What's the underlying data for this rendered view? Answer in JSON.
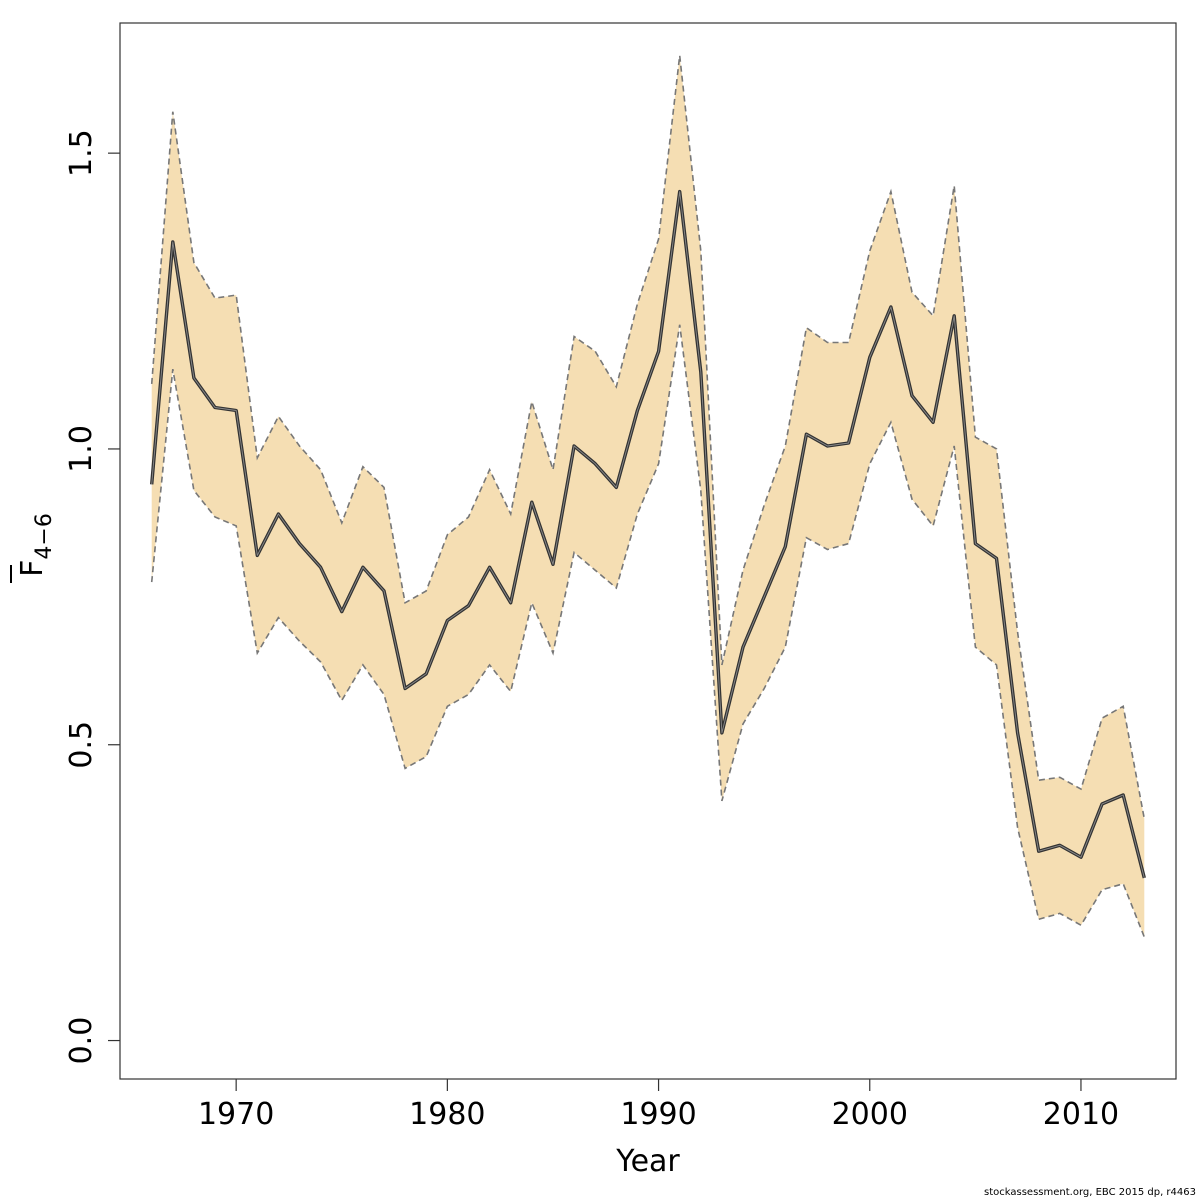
{
  "colors": {
    "band_fill": "#F5DEB3",
    "band_edge": "#777777",
    "line": "#333333",
    "frame": "#333333"
  },
  "footer": {
    "credit": "stockassessment.org, EBC  2015 dp, r4463"
  },
  "chart_data": {
    "type": "line",
    "xlabel": "Year",
    "ylabel_main": "F",
    "ylabel_sub": "4−6",
    "ylabel_overline": true,
    "xlim": [
      1964.5,
      2014.5
    ],
    "ylim": [
      -0.065,
      1.72
    ],
    "xticks": [
      1970,
      1980,
      1990,
      2000,
      2010
    ],
    "xtick_labels": [
      "1970",
      "1980",
      "1990",
      "2000",
      "2010"
    ],
    "yticks": [
      0.0,
      0.5,
      1.0,
      1.5
    ],
    "ytick_labels": [
      "0.0",
      "0.5",
      "1.0",
      "1.5"
    ],
    "grid": false,
    "x": [
      1966,
      1967,
      1968,
      1969,
      1970,
      1971,
      1972,
      1973,
      1974,
      1975,
      1976,
      1977,
      1978,
      1979,
      1980,
      1981,
      1982,
      1983,
      1984,
      1985,
      1986,
      1987,
      1988,
      1989,
      1990,
      1991,
      1992,
      1993,
      1994,
      1995,
      1996,
      1997,
      1998,
      1999,
      2000,
      2001,
      2002,
      2003,
      2004,
      2005,
      2006,
      2007,
      2008,
      2009,
      2010,
      2011,
      2012,
      2013
    ],
    "series": [
      {
        "values": [
          0.94,
          1.35,
          1.12,
          1.07,
          1.065,
          0.82,
          0.89,
          0.84,
          0.8,
          0.725,
          0.8,
          0.76,
          0.595,
          0.62,
          0.71,
          0.735,
          0.8,
          0.74,
          0.91,
          0.805,
          1.005,
          0.975,
          0.935,
          1.065,
          1.165,
          1.435,
          1.13,
          0.52,
          0.665,
          0.75,
          0.835,
          1.025,
          1.005,
          1.01,
          1.155,
          1.24,
          1.09,
          1.045,
          1.225,
          0.84,
          0.815,
          0.52,
          0.32,
          0.33,
          0.31,
          0.4,
          0.415,
          0.275
        ]
      }
    ],
    "band": {
      "upper": [
        1.11,
        1.57,
        1.315,
        1.255,
        1.26,
        0.985,
        1.055,
        1.005,
        0.965,
        0.875,
        0.97,
        0.935,
        0.74,
        0.76,
        0.855,
        0.885,
        0.965,
        0.89,
        1.08,
        0.965,
        1.19,
        1.165,
        1.105,
        1.245,
        1.355,
        1.665,
        1.335,
        0.635,
        0.795,
        0.905,
        1.005,
        1.205,
        1.18,
        1.18,
        1.335,
        1.435,
        1.265,
        1.225,
        1.445,
        1.02,
        1.0,
        0.69,
        0.44,
        0.445,
        0.425,
        0.545,
        0.565,
        0.375
      ],
      "lower": [
        0.775,
        1.135,
        0.93,
        0.885,
        0.87,
        0.655,
        0.715,
        0.675,
        0.64,
        0.575,
        0.635,
        0.585,
        0.46,
        0.48,
        0.565,
        0.585,
        0.635,
        0.59,
        0.74,
        0.655,
        0.825,
        0.795,
        0.765,
        0.89,
        0.975,
        1.21,
        0.93,
        0.405,
        0.535,
        0.595,
        0.665,
        0.85,
        0.83,
        0.84,
        0.975,
        1.045,
        0.915,
        0.87,
        1.005,
        0.665,
        0.635,
        0.36,
        0.205,
        0.215,
        0.195,
        0.255,
        0.265,
        0.175
      ]
    }
  }
}
